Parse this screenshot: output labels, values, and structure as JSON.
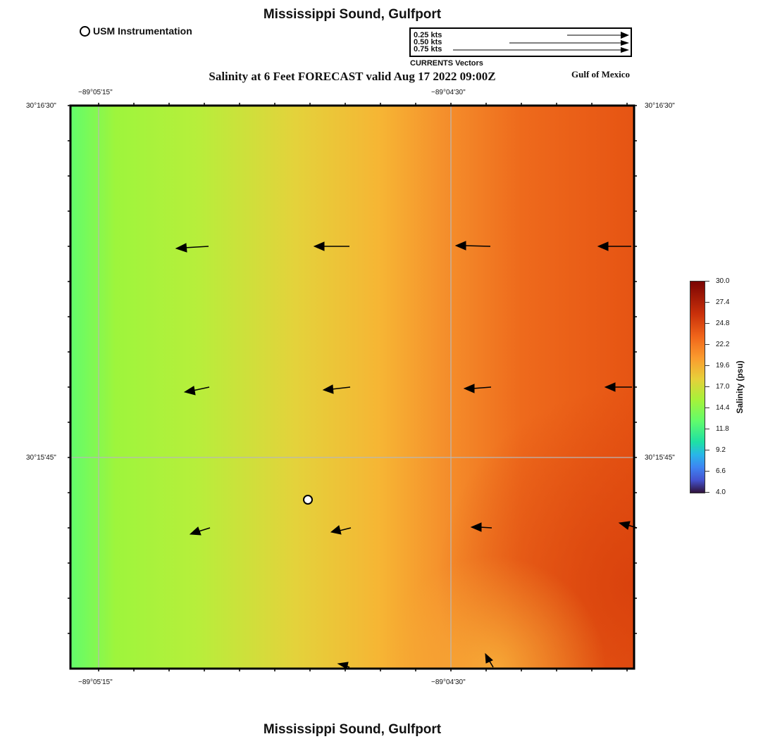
{
  "header": {
    "title": "Mississippi Sound, Gulfport",
    "subtitle": "Salinity at 6 Feet FORECAST valid Aug 17 2022 09:00Z",
    "region_label": "Gulf of Mexico",
    "footer_title": "Mississippi Sound, Gulfport"
  },
  "station_legend": {
    "label": "USM Instrumentation"
  },
  "vector_legend": {
    "caption": "CURRENTS Vectors",
    "entries": [
      {
        "label": "0.25 kts",
        "speed_kts": 0.25
      },
      {
        "label": "0.50 kts",
        "speed_kts": 0.5
      },
      {
        "label": "0.75 kts",
        "speed_kts": 0.75
      }
    ]
  },
  "map": {
    "lon_labels": {
      "top_left": "−89°05'15\"",
      "top_right": "−89°04'30\"",
      "bottom_left": "−89°05'15\"",
      "bottom_right": "−89°04'30\""
    },
    "lat_labels": {
      "left_top": "30°16'30\"",
      "left_mid": "30°15'45\"",
      "right_top": "30°16'30\"",
      "right_mid": "30°15'45\""
    },
    "colors": {
      "low_salinity": "#62fc6b",
      "mid_salinity": "#e7cf3a",
      "high_salinity": "#e95515",
      "gridline": "#b5b5b5",
      "vector": "#000000"
    }
  },
  "colorbar": {
    "title": "Salinity (psu)",
    "min": 4.0,
    "max": 30.0,
    "ticks": [
      "30.0",
      "27.4",
      "24.8",
      "22.2",
      "19.6",
      "17.0",
      "14.4",
      "11.8",
      "9.2",
      "6.6",
      "4.0"
    ]
  }
}
